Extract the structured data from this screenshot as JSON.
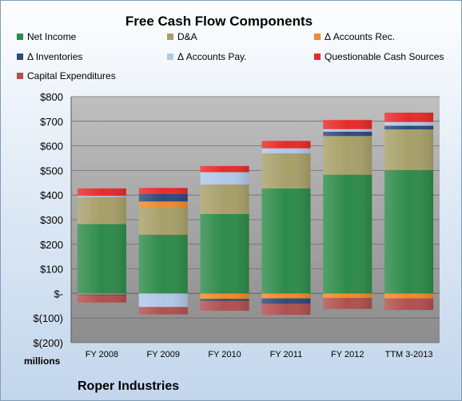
{
  "chart_data": {
    "type": "bar",
    "stacked": true,
    "title": "Free Cash Flow Components",
    "unit_label": "millions",
    "company": "Roper Industries",
    "categories": [
      "FY 2008",
      "FY 2009",
      "FY 2010",
      "FY 2011",
      "FY 2012",
      "TTM 3-2013"
    ],
    "ylim": [
      -200,
      800
    ],
    "yticks": [
      {
        "value": 800,
        "label": "$800"
      },
      {
        "value": 700,
        "label": "$700"
      },
      {
        "value": 600,
        "label": "$600"
      },
      {
        "value": 500,
        "label": "$500"
      },
      {
        "value": 400,
        "label": "$400"
      },
      {
        "value": 300,
        "label": "$300"
      },
      {
        "value": 200,
        "label": "$200"
      },
      {
        "value": 100,
        "label": "$100"
      },
      {
        "value": 0,
        "label": "$-"
      },
      {
        "value": -100,
        "label": "$(100)"
      },
      {
        "value": -200,
        "label": "$(200)"
      }
    ],
    "grid": true,
    "legend_position": "top",
    "series": [
      {
        "name": "Net Income",
        "color": "#2e8b4a",
        "values": [
          282,
          239,
          323,
          427,
          483,
          502
        ]
      },
      {
        "name": "D&A",
        "color": "#a8a06a",
        "values": [
          110,
          110,
          120,
          143,
          157,
          165
        ]
      },
      {
        "name": "Δ Accounts Rec.",
        "color": "#f0892c",
        "values": [
          -4,
          25,
          -22,
          -20,
          -18,
          -20
        ]
      },
      {
        "name": "Δ Inventories",
        "color": "#2d4a7a",
        "values": [
          -3,
          30,
          -8,
          -22,
          18,
          15
        ]
      },
      {
        "name": "Δ Accounts Pay.",
        "color": "#b0c8e8",
        "values": [
          5,
          -55,
          50,
          20,
          10,
          15
        ]
      },
      {
        "name": "Questionable Cash Sources",
        "color": "#e82a2a",
        "values": [
          30,
          25,
          25,
          30,
          37,
          38
        ]
      },
      {
        "name": "Capital Expenditures",
        "color": "#b05050",
        "values": [
          -30,
          -30,
          -40,
          -45,
          -45,
          -47
        ]
      }
    ]
  }
}
